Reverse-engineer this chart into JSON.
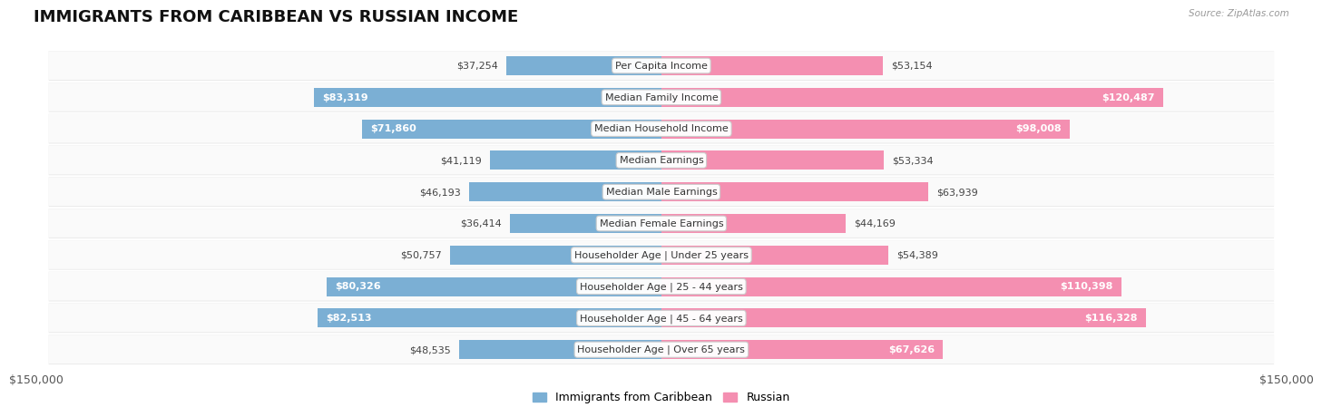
{
  "title": "IMMIGRANTS FROM CARIBBEAN VS RUSSIAN INCOME",
  "source": "Source: ZipAtlas.com",
  "categories": [
    "Per Capita Income",
    "Median Family Income",
    "Median Household Income",
    "Median Earnings",
    "Median Male Earnings",
    "Median Female Earnings",
    "Householder Age | Under 25 years",
    "Householder Age | 25 - 44 years",
    "Householder Age | 45 - 64 years",
    "Householder Age | Over 65 years"
  ],
  "caribbean_values": [
    37254,
    83319,
    71860,
    41119,
    46193,
    36414,
    50757,
    80326,
    82513,
    48535
  ],
  "russian_values": [
    53154,
    120487,
    98008,
    53334,
    63939,
    44169,
    54389,
    110398,
    116328,
    67626
  ],
  "caribbean_color": "#7bafd4",
  "russian_color": "#f48fb1",
  "caribbean_label": "Immigrants from Caribbean",
  "russian_label": "Russian",
  "max_val": 150000,
  "bg_color": "#ffffff",
  "title_fontsize": 13,
  "label_fontsize": 8,
  "value_fontsize": 8,
  "axis_label": "$150,000",
  "threshold_inside": 65000,
  "row_colors": [
    "#f7f7f7",
    "#eeeeee"
  ]
}
